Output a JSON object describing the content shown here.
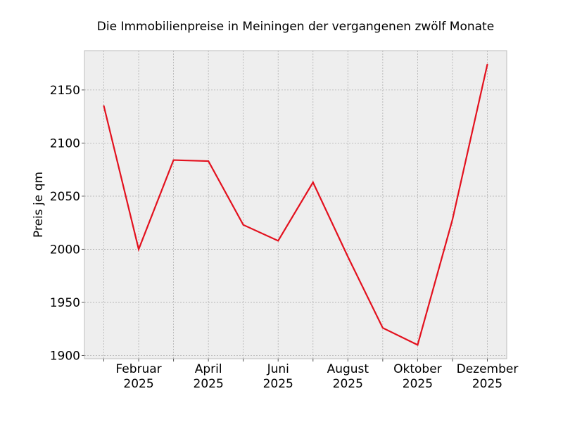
{
  "chart_data": {
    "type": "line",
    "title": "Die Immobilienpreise in Meiningen der vergangenen zwölf Monate",
    "xlabel": "",
    "ylabel": "Preis je qm",
    "x": [
      "2025-01",
      "2025-02",
      "2025-03",
      "2025-04",
      "2025-05",
      "2025-06",
      "2025-07",
      "2025-08",
      "2025-09",
      "2025-10",
      "2025-11",
      "2025-12"
    ],
    "x_tick_labels": [
      {
        "x": "2025-02",
        "line1": "Februar",
        "line2": "2025"
      },
      {
        "x": "2025-04",
        "line1": "April",
        "line2": "2025"
      },
      {
        "x": "2025-06",
        "line1": "Juni",
        "line2": "2025"
      },
      {
        "x": "2025-08",
        "line1": "August",
        "line2": "2025"
      },
      {
        "x": "2025-10",
        "line1": "Oktober",
        "line2": "2025"
      },
      {
        "x": "2025-12",
        "line1": "Dezember",
        "line2": "2025"
      }
    ],
    "series": [
      {
        "values": [
          2135,
          2000,
          2084,
          2083,
          2023,
          2008,
          2063,
          1993,
          1926,
          1910,
          2028,
          2174
        ]
      }
    ],
    "ylim": [
      1897,
      2187
    ],
    "y_ticks": [
      1900,
      1950,
      2000,
      2050,
      2100,
      2150
    ],
    "grid": true,
    "colors": {
      "line": "#e3111e",
      "plot_background": "#eeeeee",
      "grid": "#b0b0b0"
    }
  }
}
